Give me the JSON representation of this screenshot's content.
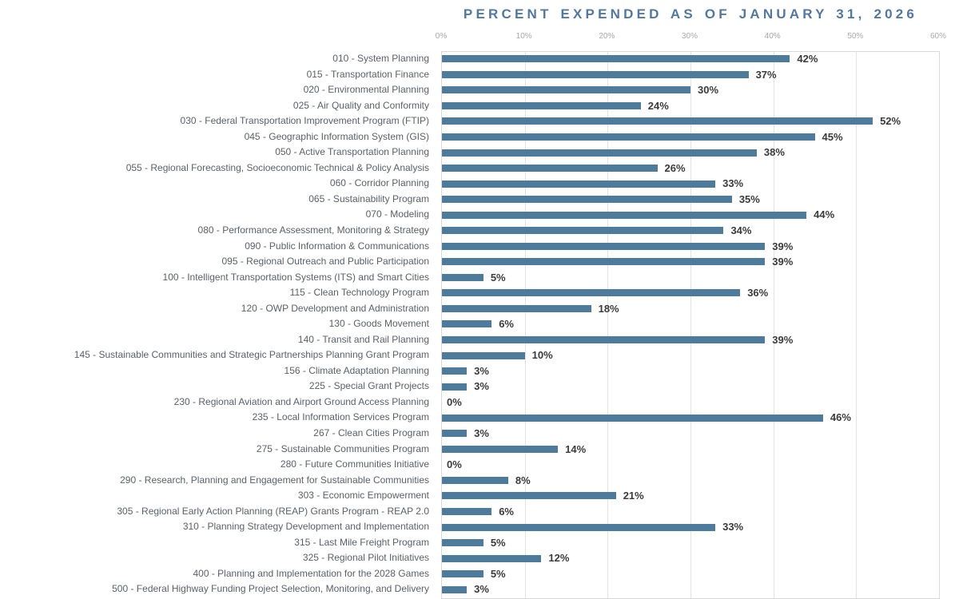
{
  "chart_data": {
    "type": "bar",
    "orientation": "horizontal",
    "title": "PERCENT EXPENDED AS OF JANUARY 31, 2026",
    "xlabel": "",
    "ylabel": "",
    "xlim": [
      0,
      60
    ],
    "x_ticks": [
      "0%",
      "10%",
      "20%",
      "30%",
      "40%",
      "50%",
      "60%"
    ],
    "grid": "vertical",
    "legend": "none",
    "categories": [
      "010 - System Planning",
      "015 - Transportation Finance",
      "020 - Environmental Planning",
      "025 - Air Quality and Conformity",
      "030 - Federal Transportation Improvement Program (FTIP)",
      "045 - Geographic Information System (GIS)",
      "050 - Active Transportation Planning",
      "055 - Regional Forecasting, Socioeconomic Technical & Policy Analysis",
      "060 - Corridor Planning",
      "065 - Sustainability Program",
      "070 - Modeling",
      "080 - Performance Assessment, Monitoring & Strategy",
      "090 - Public Information & Communications",
      "095 - Regional Outreach and Public Participation",
      "100 - Intelligent Transportation Systems (ITS) and Smart Cities",
      "115 - Clean Technology Program",
      "120 - OWP Development and Administration",
      "130 - Goods Movement",
      "140 - Transit and Rail Planning",
      "145 - Sustainable Communities and Strategic Partnerships Planning Grant Program",
      "156 - Climate Adaptation Planning",
      "225 - Special Grant Projects",
      "230 - Regional Aviation and Airport Ground Access Planning",
      "235 - Local Information Services Program",
      "267 - Clean Cities Program",
      "275 - Sustainable Communities Program",
      "280 - Future Communities Initiative",
      "290 - Research, Planning and Engagement for Sustainable Communities",
      "303 - Economic Empowerment",
      "305 - Regional Early Action Planning (REAP) Grants Program - REAP 2.0",
      "310 - Planning Strategy Development and Implementation",
      "315 - Last Mile Freight Program",
      "325 - Regional Pilot Initiatives",
      "400 - Planning and Implementation for the 2028 Games",
      "500 - Federal Highway Funding Project Selection, Monitoring, and Delivery"
    ],
    "values": [
      42,
      37,
      30,
      24,
      52,
      45,
      38,
      26,
      33,
      35,
      44,
      34,
      39,
      39,
      5,
      36,
      18,
      6,
      39,
      10,
      3,
      3,
      0,
      46,
      3,
      14,
      0,
      8,
      21,
      6,
      33,
      5,
      12,
      5,
      3
    ],
    "value_labels": [
      "42%",
      "37%",
      "30%",
      "24%",
      "52%",
      "45%",
      "38%",
      "26%",
      "33%",
      "35%",
      "44%",
      "34%",
      "39%",
      "39%",
      "5%",
      "36%",
      "18%",
      "6%",
      "39%",
      "10%",
      "3%",
      "3%",
      "0%",
      "46%",
      "3%",
      "14%",
      "0%",
      "8%",
      "21%",
      "6%",
      "33%",
      "5%",
      "12%",
      "5%",
      "3%"
    ],
    "colors": {
      "bar": "#4e7a9b",
      "title": "#54789b",
      "category_label": "#5b6168",
      "value_label": "#3b3b3b",
      "axis_tick": "#a9a9a9",
      "gridline": "#e3e3e3",
      "plot_border": "#d9d9d9"
    }
  }
}
